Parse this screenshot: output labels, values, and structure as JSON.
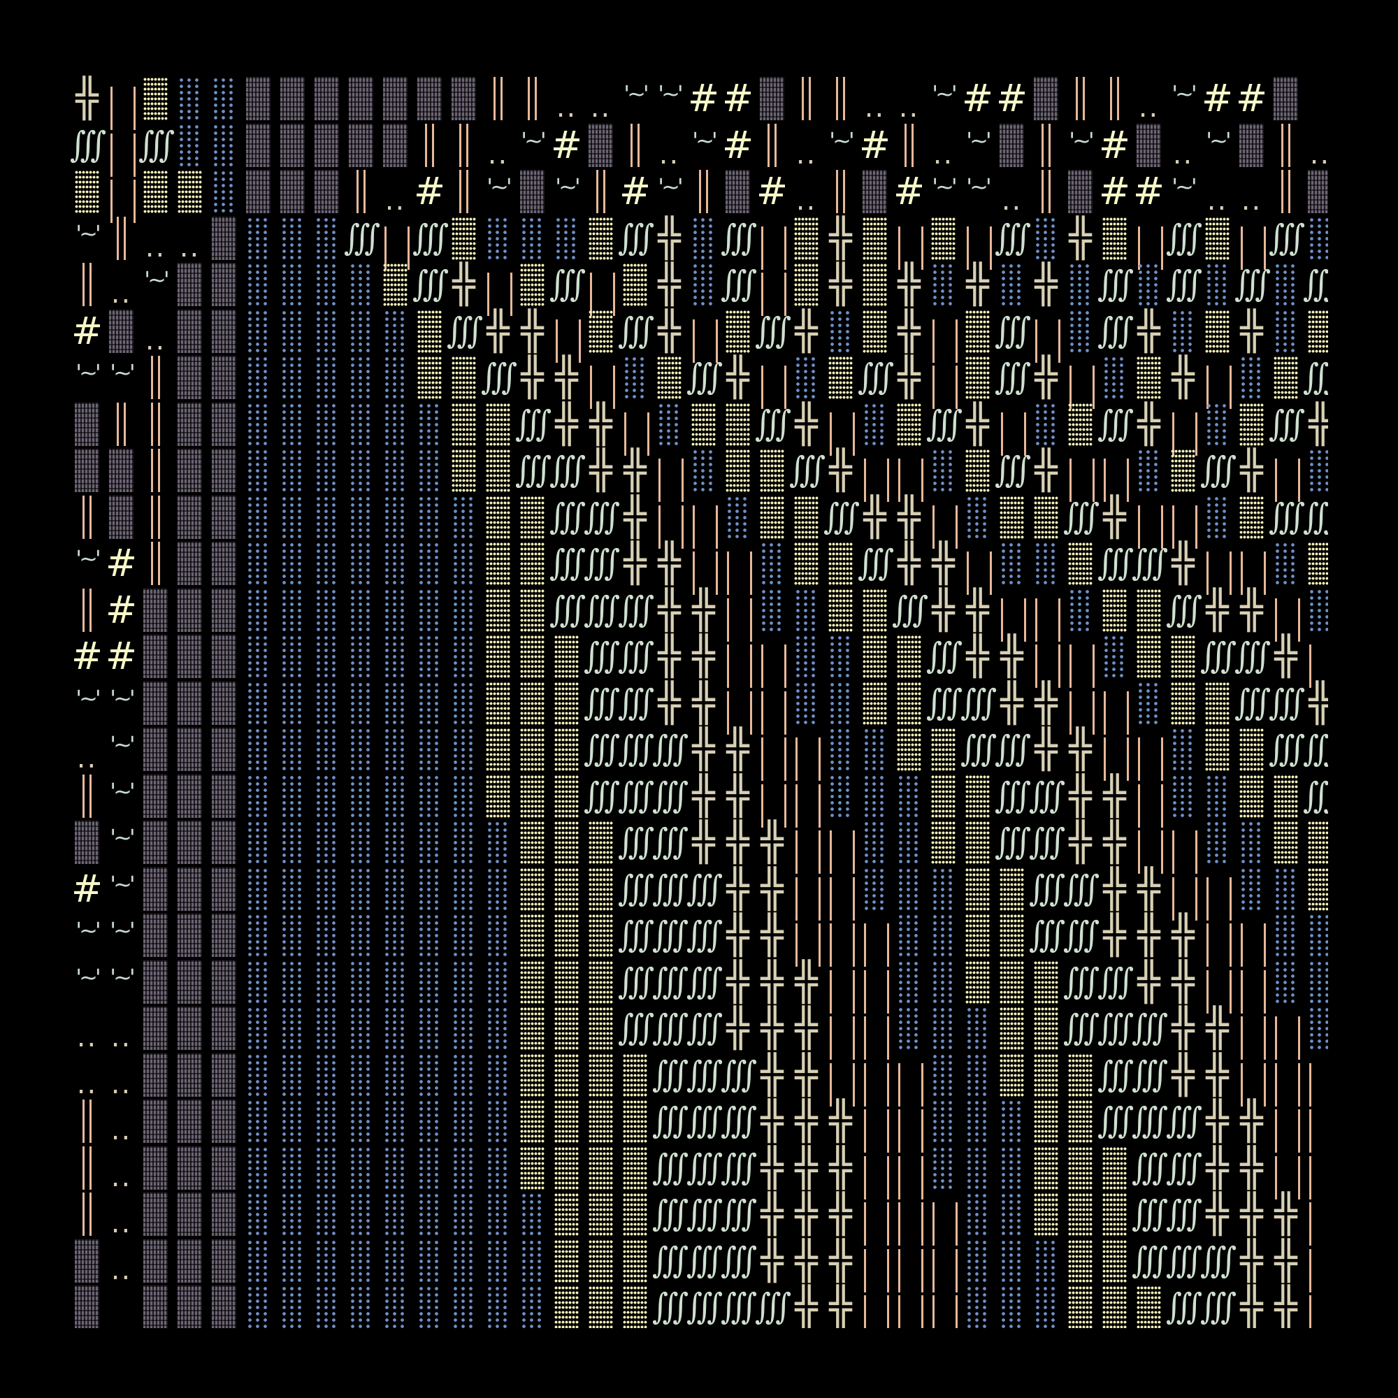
{
  "legend": {
    "D": {
      "glyph": "▓",
      "name": "dark-shade-block",
      "color": "#6c6474"
    },
    "Y": {
      "glyph": "▒",
      "name": "medium-shade-block",
      "color": "#f4f0b8"
    },
    "B": {
      "glyph": "░",
      "name": "light-shade-block",
      "color": "#7090c8"
    },
    "V": {
      "glyph": "║",
      "name": "double-bar",
      "color": "#e8b898"
    },
    "Q": {
      "glyph": "| |",
      "name": "split-bars",
      "color": "#e8b898"
    },
    "H": {
      "glyph": "╬",
      "name": "double-cross",
      "color": "#d8d0b4"
    },
    "I": {
      "glyph": "∭",
      "name": "triple-integral",
      "color": "#cfe0d0"
    },
    "#": {
      "glyph": "#",
      "name": "hash",
      "color": "#f6f8c8"
    },
    "t": {
      "glyph": "'~'",
      "name": "quote-tilde",
      "color": "#c8dcd0"
    },
    "d": {
      "glyph": "..",
      "name": "double-dot",
      "color": "#d8ceb4"
    },
    "_": {
      "glyph": "",
      "name": "blank",
      "color": "#000000"
    }
  },
  "background": "#000000",
  "rows": [
    "HQYBBDDDDDDDVVddtt##DVVddt##DVVdt##D_",
    "IQIBBDDDDDVVdt#DVdt#Vdt#VdtDVt#DdtDVd",
    "YQYYBDDDVd#VtDtV#tVD#dVD#ttdVD##tddVD",
    "tVddDBBBIQIYBBBYIHBIQYHYQYQIBHYQIYQIB",
    "VdtDDBBBBYIHQYIQYHBIQYHYHBHBHBIBIBIBI",
    "#DdDDBBBBBYIHHQYIHQYIHBYHQYIQBIHBYHBY",
    "ttVDDBBBBBYYIHHQBYIHQBYIHQYIHQBYHQBYI",
    "DVVDDBBBBBBYYIHHQBYYIHQBYIHQBYIHQBYIH",
    "DDVDDBBBBBBYYIIHHQBYYIHQQBYIHQQBYIHQB",
    "VDVDDBBBBBBBYYIIHQQBYYIHHQBYYIHQQBYII",
    "t#VDDBBBBBBBYYIIHHQQBYYIHHQBBYIIHQQBY",
    "V#DDDBBBBBBBYYIIIHHQBBYYIHHQQBYYIHHQB",
    "##DDDBBBBBBBYYYIIHHQQBBYYIHHQQBYYIIHQ",
    "ttDDDBBBBBBBYYYIIHHQQBBYYIIHHQQBYYIIH",
    "dtDDDBBBBBBBYYYIIIHHQQBBYYIIHHQQBYYII",
    "VtDDDBBBBBBBYYYIIIHHQQBBBYYIIHHQBBYYI",
    "DtDDDBBBBBBBBYYYIIHHHQQBBYYIIHHQQBBYY",
    "#tDDDBBBBBBBBYYYIIIHHQQBBBYYIIHHQQBBY",
    "ttDDDBBBBBBBBYYYIIIHHQQQBBYYIIHHHQQBB",
    "ttDDDBBBBBBBBYYYIIIHHHQQBBYYYIIHHQQBB",
    "ddDDDBBBBBBBBYYYIIIHHHQQBBBYYIIIHHQQB",
    "ddDDDBBBBBBBBYYYYIIIHHQQQBBYYYIIHHQQQ",
    "VdDDDBBBBBBBBYYYYIIIHHHQQBBBYYIIIHHQQ",
    "VdDDDBBBBBBBBYYYYIIIHHHQQBBBYYYIIHHQQ",
    "VdDDDBBBBBBBBBYYYIIIHHHQQQBBYYYIIHHHQ",
    "DdDDDBBBBBBBBBYYYIIIHHHQQQBBBYYIIIHHQ",
    "D_DDDBBBBBBBBBYYYIIIIHHQQQBBBYYYIIHHQ"
  ]
}
